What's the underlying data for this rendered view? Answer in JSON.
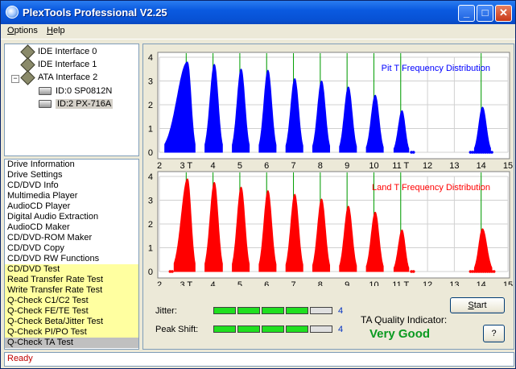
{
  "window": {
    "title": "PlexTools Professional V2.25",
    "buttons": {
      "minimize": "_",
      "maximize": "□",
      "close": "✕"
    }
  },
  "menu": [
    {
      "label": "Options",
      "underline": "O",
      "rest": "ptions"
    },
    {
      "label": "Help",
      "underline": "H",
      "rest": "elp"
    }
  ],
  "tree": {
    "nodes": [
      {
        "label": "IDE Interface 0"
      },
      {
        "label": "IDE Interface 1"
      },
      {
        "label": "ATA Interface 2",
        "expand": "−"
      },
      {
        "label": "ID:0  SP0812N"
      },
      {
        "label": "ID:2  PX-716A"
      }
    ]
  },
  "functions": [
    {
      "label": "Drive Information",
      "style": "normal"
    },
    {
      "label": "Drive Settings",
      "style": "normal"
    },
    {
      "label": "CD/DVD Info",
      "style": "normal"
    },
    {
      "label": "Multimedia Player",
      "style": "normal"
    },
    {
      "label": "AudioCD Player",
      "style": "normal"
    },
    {
      "label": "Digital Audio Extraction",
      "style": "normal"
    },
    {
      "label": "AudioCD Maker",
      "style": "normal"
    },
    {
      "label": "CD/DVD-ROM Maker",
      "style": "normal"
    },
    {
      "label": "CD/DVD Copy",
      "style": "normal"
    },
    {
      "label": "CD/DVD RW Functions",
      "style": "normal"
    },
    {
      "label": "CD/DVD Test",
      "style": "hl"
    },
    {
      "label": "Read Transfer Rate Test",
      "style": "hl"
    },
    {
      "label": "Write Transfer Rate Test",
      "style": "hl"
    },
    {
      "label": "Q-Check C1/C2 Test",
      "style": "hl"
    },
    {
      "label": "Q-Check FE/TE Test",
      "style": "hl"
    },
    {
      "label": "Q-Check Beta/Jitter Test",
      "style": "hl"
    },
    {
      "label": "Q-Check PI/PO Test",
      "style": "hl"
    },
    {
      "label": "Q-Check TA Test",
      "style": "sel"
    }
  ],
  "chart_data": [
    {
      "type": "area",
      "title": "Pit T Frequency Distribution",
      "color": "#0000ff",
      "xlim": [
        2,
        15
      ],
      "ylim": [
        0,
        4
      ],
      "yticks": [
        0,
        1,
        2,
        3,
        4
      ],
      "xticks": [
        "2",
        "3 T",
        "4",
        "5",
        "6",
        "7",
        "8",
        "9",
        "10",
        "11 T",
        "12",
        "13",
        "14",
        "15"
      ],
      "marker_lines": [
        3,
        4,
        5,
        6,
        7,
        8,
        9,
        10,
        11,
        14
      ],
      "peaks": [
        {
          "center": 3.05,
          "height": 3.8,
          "left": 0.85,
          "right": 0.28
        },
        {
          "center": 4.05,
          "height": 3.7,
          "left": 0.35,
          "right": 0.3
        },
        {
          "center": 5.05,
          "height": 3.5,
          "left": 0.33,
          "right": 0.3
        },
        {
          "center": 6.05,
          "height": 3.45,
          "left": 0.33,
          "right": 0.3
        },
        {
          "center": 7.05,
          "height": 3.1,
          "left": 0.33,
          "right": 0.3
        },
        {
          "center": 8.05,
          "height": 3.0,
          "left": 0.33,
          "right": 0.3
        },
        {
          "center": 9.05,
          "height": 2.75,
          "left": 0.33,
          "right": 0.3
        },
        {
          "center": 10.05,
          "height": 2.4,
          "left": 0.33,
          "right": 0.3
        },
        {
          "center": 11.05,
          "height": 1.75,
          "left": 0.3,
          "right": 0.25
        },
        {
          "center": 14.05,
          "height": 1.9,
          "left": 0.3,
          "right": 0.3
        }
      ],
      "baseline_dots": [
        [
          11.4,
          11.55
        ],
        [
          13.6,
          14.4
        ]
      ]
    },
    {
      "type": "area",
      "title": "Land T Frequency Distribution",
      "color": "#ff0000",
      "xlim": [
        2,
        15
      ],
      "ylim": [
        0,
        4
      ],
      "yticks": [
        0,
        1,
        2,
        3,
        4
      ],
      "xticks": [
        "2",
        "3 T",
        "4",
        "5",
        "6",
        "7",
        "8",
        "9",
        "10",
        "11 T",
        "12",
        "13",
        "14",
        "15"
      ],
      "marker_lines": [
        3,
        4,
        5,
        6,
        7,
        8,
        9,
        10,
        11,
        14
      ],
      "peaks": [
        {
          "center": 3.05,
          "height": 3.9,
          "left": 0.5,
          "right": 0.28
        },
        {
          "center": 4.05,
          "height": 3.75,
          "left": 0.35,
          "right": 0.3
        },
        {
          "center": 5.05,
          "height": 3.55,
          "left": 0.33,
          "right": 0.3
        },
        {
          "center": 6.05,
          "height": 3.4,
          "left": 0.33,
          "right": 0.3
        },
        {
          "center": 7.05,
          "height": 3.25,
          "left": 0.33,
          "right": 0.3
        },
        {
          "center": 8.05,
          "height": 3.05,
          "left": 0.33,
          "right": 0.3
        },
        {
          "center": 9.05,
          "height": 2.75,
          "left": 0.33,
          "right": 0.3
        },
        {
          "center": 10.05,
          "height": 2.5,
          "left": 0.33,
          "right": 0.3
        },
        {
          "center": 11.05,
          "height": 1.75,
          "left": 0.3,
          "right": 0.25
        },
        {
          "center": 14.05,
          "height": 1.8,
          "left": 0.3,
          "right": 0.35
        }
      ],
      "baseline_dots": [
        [
          2.4,
          2.55
        ],
        [
          11.4,
          11.5
        ],
        [
          13.6,
          14.5
        ]
      ]
    }
  ],
  "metrics": {
    "jitter": {
      "label": "Jitter:",
      "level": 4,
      "max": 5,
      "value": "4"
    },
    "peak_shift": {
      "label": "Peak Shift:",
      "level": 4,
      "max": 5,
      "value": "4"
    }
  },
  "quality": {
    "label": "TA Quality Indicator:",
    "value": "Very Good"
  },
  "buttons": {
    "start": "Start",
    "start_u": "S",
    "start_rest": "tart",
    "help": "?"
  },
  "status": "Ready"
}
